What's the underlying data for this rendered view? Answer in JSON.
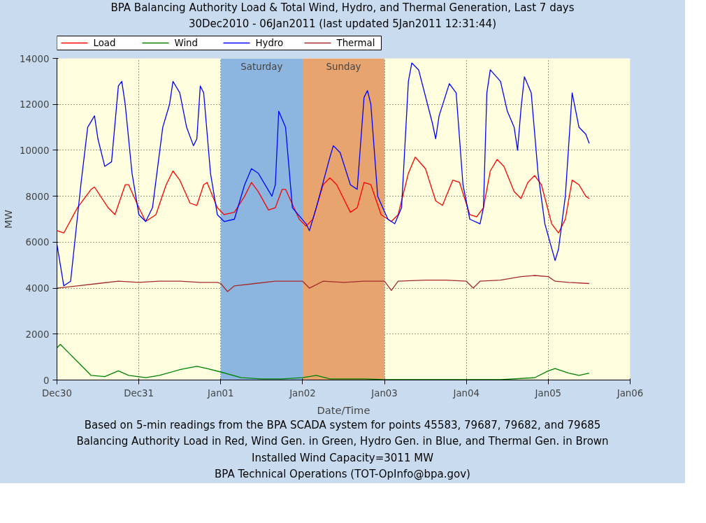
{
  "chart_data": {
    "type": "line",
    "title": "BPA Balancing Authority Load & Total Wind, Hydro, and Thermal Generation, Last 7 days",
    "subtitle": "30Dec2010 - 06Jan2011 (last updated 5Jan2011 12:31:44)",
    "xlabel": "Date/Time",
    "ylabel": "MW",
    "xlim": [
      "2010-12-30",
      "2011-01-06"
    ],
    "xticks": [
      {
        "value": "2010-12-30",
        "label": "Dec30"
      },
      {
        "value": "2010-12-31",
        "label": "Dec31"
      },
      {
        "value": "2011-01-01",
        "label": "Jan01"
      },
      {
        "value": "2011-01-02",
        "label": "Jan02"
      },
      {
        "value": "2011-01-03",
        "label": "Jan03"
      },
      {
        "value": "2011-01-04",
        "label": "Jan04"
      },
      {
        "value": "2011-01-05",
        "label": "Jan05"
      },
      {
        "value": "2011-01-06",
        "label": "Jan06"
      }
    ],
    "ylim": [
      0,
      14000
    ],
    "yticks": [
      0,
      2000,
      4000,
      6000,
      8000,
      10000,
      12000,
      14000
    ],
    "grid": true,
    "legend": "top left",
    "line_style": "solid",
    "marker": "none",
    "bands": [
      {
        "axis": "x",
        "from": "2011-01-01",
        "to": "2011-01-02",
        "label": "Saturday",
        "color": "#8cb6e0"
      },
      {
        "axis": "x",
        "from": "2011-01-02",
        "to": "2011-01-03",
        "label": "Sunday",
        "color": "#e8a46e"
      }
    ],
    "series": [
      {
        "name": "Load",
        "color": "#ff0000",
        "x": [
          "2010-12-30T00:00",
          "2010-12-30T02:00",
          "2010-12-30T06:00",
          "2010-12-30T10:00",
          "2010-12-30T11:00",
          "2010-12-30T15:00",
          "2010-12-30T17:00",
          "2010-12-30T20:00",
          "2010-12-30T21:00",
          "2010-12-31T00:00",
          "2010-12-31T02:00",
          "2010-12-31T05:00",
          "2010-12-31T08:00",
          "2010-12-31T10:00",
          "2010-12-31T12:00",
          "2010-12-31T15:00",
          "2010-12-31T17:00",
          "2010-12-31T19:00",
          "2010-12-31T20:00",
          "2010-12-31T23:00",
          "2011-01-01T01:00",
          "2011-01-01T04:00",
          "2011-01-01T07:00",
          "2011-01-01T09:00",
          "2011-01-01T11:00",
          "2011-01-01T14:00",
          "2011-01-01T16:00",
          "2011-01-01T18:00",
          "2011-01-01T19:00",
          "2011-01-01T23:00",
          "2011-01-02T01:00",
          "2011-01-02T03:00",
          "2011-01-02T06:00",
          "2011-01-02T08:00",
          "2011-01-02T10:00",
          "2011-01-02T14:00",
          "2011-01-02T16:00",
          "2011-01-02T18:00",
          "2011-01-02T20:00",
          "2011-01-02T23:00",
          "2011-01-03T02:00",
          "2011-01-03T04:00",
          "2011-01-03T07:00",
          "2011-01-03T09:00",
          "2011-01-03T12:00",
          "2011-01-03T15:00",
          "2011-01-03T17:00",
          "2011-01-03T20:00",
          "2011-01-03T22:00",
          "2011-01-04T01:00",
          "2011-01-04T03:00",
          "2011-01-04T05:00",
          "2011-01-04T07:00",
          "2011-01-04T09:00",
          "2011-01-04T11:00",
          "2011-01-04T14:00",
          "2011-01-04T16:00",
          "2011-01-04T18:00",
          "2011-01-04T20:00",
          "2011-01-04T22:00",
          "2011-01-05T01:00",
          "2011-01-05T03:00",
          "2011-01-05T05:00",
          "2011-01-05T07:00",
          "2011-01-05T09:00",
          "2011-01-05T11:00",
          "2011-01-05T12:00"
        ],
        "values": [
          6500,
          6400,
          7500,
          8300,
          8400,
          7500,
          7200,
          8500,
          8500,
          7500,
          6900,
          7200,
          8500,
          9100,
          8700,
          7700,
          7600,
          8500,
          8600,
          7500,
          7200,
          7300,
          8000,
          8600,
          8200,
          7400,
          7500,
          8300,
          8300,
          7000,
          6700,
          7000,
          8500,
          8800,
          8500,
          7300,
          7500,
          8600,
          8500,
          7200,
          6900,
          7200,
          9000,
          9700,
          9200,
          7800,
          7600,
          8700,
          8600,
          7200,
          7100,
          7500,
          9100,
          9600,
          9300,
          8200,
          7900,
          8600,
          8900,
          8500,
          6800,
          6400,
          7000,
          8700,
          8500,
          8000,
          7900
        ]
      },
      {
        "name": "Wind",
        "color": "#008000",
        "x": [
          "2010-12-30T00:00",
          "2010-12-30T01:00",
          "2010-12-30T04:00",
          "2010-12-30T08:00",
          "2010-12-30T10:00",
          "2010-12-30T14:00",
          "2010-12-30T18:00",
          "2010-12-30T21:00",
          "2010-12-31T02:00",
          "2010-12-31T06:00",
          "2010-12-31T12:00",
          "2010-12-31T17:00",
          "2010-12-31T20:00",
          "2011-01-01T00:00",
          "2011-01-01T06:00",
          "2011-01-01T12:00",
          "2011-01-01T18:00",
          "2011-01-02T00:00",
          "2011-01-02T04:00",
          "2011-01-02T08:00",
          "2011-01-02T18:00",
          "2011-01-03T00:00",
          "2011-01-03T14:00",
          "2011-01-04T10:00",
          "2011-01-04T20:00",
          "2011-01-05T00:00",
          "2011-01-05T02:00",
          "2011-01-05T06:00",
          "2011-01-05T09:00",
          "2011-01-05T12:00"
        ],
        "values": [
          1400,
          1550,
          1100,
          500,
          200,
          150,
          400,
          200,
          100,
          200,
          450,
          600,
          500,
          350,
          100,
          50,
          50,
          100,
          200,
          50,
          50,
          20,
          20,
          20,
          100,
          400,
          500,
          300,
          200,
          300
        ]
      },
      {
        "name": "Hydro",
        "color": "#0000ff",
        "x": [
          "2010-12-30T00:00",
          "2010-12-30T02:00",
          "2010-12-30T04:00",
          "2010-12-30T07:00",
          "2010-12-30T09:00",
          "2010-12-30T11:00",
          "2010-12-30T12:00",
          "2010-12-30T14:00",
          "2010-12-30T16:00",
          "2010-12-30T18:00",
          "2010-12-30T19:00",
          "2010-12-30T20:00",
          "2010-12-30T22:00",
          "2010-12-31T00:00",
          "2010-12-31T02:00",
          "2010-12-31T04:00",
          "2010-12-31T07:00",
          "2010-12-31T09:00",
          "2010-12-31T10:00",
          "2010-12-31T12:00",
          "2010-12-31T14:00",
          "2010-12-31T16:00",
          "2010-12-31T17:00",
          "2010-12-31T18:00",
          "2010-12-31T19:00",
          "2010-12-31T21:00",
          "2010-12-31T23:00",
          "2011-01-01T01:00",
          "2011-01-01T04:00",
          "2011-01-01T07:00",
          "2011-01-01T09:00",
          "2011-01-01T11:00",
          "2011-01-01T15:00",
          "2011-01-01T16:00",
          "2011-01-01T17:00",
          "2011-01-01T19:00",
          "2011-01-01T21:00",
          "2011-01-02T01:00",
          "2011-01-02T02:00",
          "2011-01-02T04:00",
          "2011-01-02T08:00",
          "2011-01-02T09:00",
          "2011-01-02T11:00",
          "2011-01-02T14:00",
          "2011-01-02T16:00",
          "2011-01-02T18:00",
          "2011-01-02T19:00",
          "2011-01-02T20:00",
          "2011-01-02T22:00",
          "2011-01-03T01:00",
          "2011-01-03T03:00",
          "2011-01-03T05:00",
          "2011-01-03T07:00",
          "2011-01-03T08:00",
          "2011-01-03T10:00",
          "2011-01-03T14:00",
          "2011-01-03T15:00",
          "2011-01-03T16:00",
          "2011-01-03T19:00",
          "2011-01-03T21:00",
          "2011-01-03T23:00",
          "2011-01-04T01:00",
          "2011-01-04T04:00",
          "2011-01-04T05:00",
          "2011-01-04T06:00",
          "2011-01-04T07:00",
          "2011-01-04T10:00",
          "2011-01-04T12:00",
          "2011-01-04T14:00",
          "2011-01-04T15:00",
          "2011-01-04T16:00",
          "2011-01-04T17:00",
          "2011-01-04T19:00",
          "2011-01-04T21:00",
          "2011-01-04T23:00",
          "2011-01-05T02:00",
          "2011-01-05T03:00",
          "2011-01-05T05:00",
          "2011-01-05T07:00",
          "2011-01-05T09:00",
          "2011-01-05T11:00",
          "2011-01-05T12:00"
        ],
        "values": [
          5900,
          4100,
          4300,
          8500,
          11000,
          11500,
          10500,
          9300,
          9500,
          12800,
          13000,
          12000,
          9000,
          7200,
          6900,
          7500,
          11000,
          12000,
          13000,
          12500,
          11000,
          10200,
          10500,
          12800,
          12500,
          9000,
          7200,
          6900,
          7000,
          8500,
          9200,
          9000,
          8000,
          8500,
          11700,
          11000,
          7500,
          6800,
          6500,
          7500,
          9700,
          10200,
          9900,
          8500,
          8300,
          12300,
          12600,
          12000,
          8000,
          7000,
          6800,
          7500,
          13000,
          13800,
          13500,
          11200,
          10500,
          11500,
          12900,
          12500,
          8500,
          7000,
          6800,
          7500,
          12500,
          13500,
          13000,
          11700,
          11000,
          10000,
          11800,
          13200,
          12500,
          9000,
          6800,
          5200,
          5700,
          8000,
          12500,
          11000,
          10700,
          10300
        ]
      },
      {
        "name": "Thermal",
        "color": "#a52a2a",
        "x": [
          "2010-12-30T00:00",
          "2010-12-30T06:00",
          "2010-12-30T12:00",
          "2010-12-30T18:00",
          "2010-12-31T00:00",
          "2010-12-31T06:00",
          "2010-12-31T12:00",
          "2010-12-31T18:00",
          "2010-12-31T23:00",
          "2011-01-01T00:00",
          "2011-01-01T02:00",
          "2011-01-01T04:00",
          "2011-01-01T10:00",
          "2011-01-01T16:00",
          "2011-01-01T22:00",
          "2011-01-02T00:00",
          "2011-01-02T02:00",
          "2011-01-02T06:00",
          "2011-01-02T12:00",
          "2011-01-02T18:00",
          "2011-01-03T00:00",
          "2011-01-03T02:00",
          "2011-01-03T04:00",
          "2011-01-03T12:00",
          "2011-01-03T18:00",
          "2011-01-04T00:00",
          "2011-01-04T02:00",
          "2011-01-04T04:00",
          "2011-01-04T10:00",
          "2011-01-04T16:00",
          "2011-01-04T20:00",
          "2011-01-05T00:00",
          "2011-01-05T02:00",
          "2011-01-05T06:00",
          "2011-01-05T12:00"
        ],
        "values": [
          4000,
          4100,
          4200,
          4300,
          4250,
          4300,
          4300,
          4250,
          4250,
          4200,
          3850,
          4100,
          4200,
          4300,
          4300,
          4300,
          4000,
          4300,
          4250,
          4300,
          4300,
          3900,
          4300,
          4350,
          4350,
          4300,
          4000,
          4300,
          4350,
          4500,
          4550,
          4500,
          4300,
          4250,
          4200
        ]
      }
    ],
    "annotations": [
      "Based on 5-min readings from the BPA SCADA system for points 45583, 79687, 79682, and 79685",
      "Balancing Authority Load in Red, Wind Gen. in Green, Hydro Gen. in Blue, and Thermal Gen. in Brown",
      "Installed Wind Capacity=3011 MW",
      "BPA Technical Operations (TOT-OpInfo@bpa.gov)"
    ]
  }
}
